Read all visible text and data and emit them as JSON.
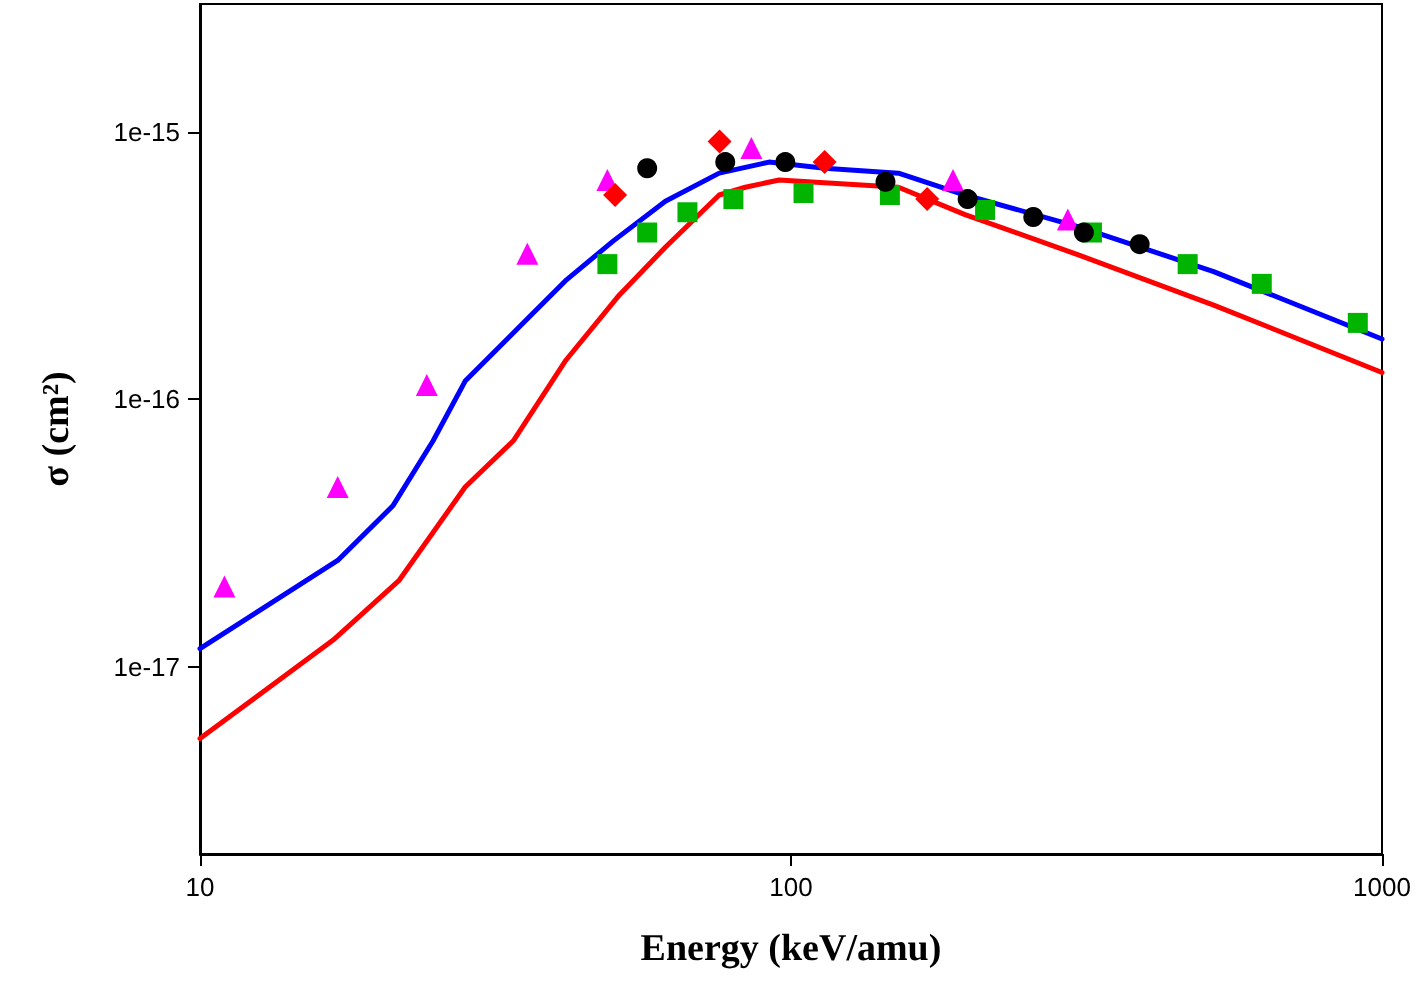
{
  "chart_data": {
    "type": "scatter",
    "xlabel": "Energy (keV/amu)",
    "ylabel": "σ (cm²)",
    "log": "xy",
    "grid": false,
    "xlim": [
      10,
      1000
    ],
    "xticks": [
      10,
      100,
      1000
    ],
    "ylim": [
      2e-18,
      3e-15
    ],
    "yticks": [
      1e-17,
      1e-16,
      1e-15
    ],
    "series": [
      {
        "type": "line",
        "color": "#0000ff",
        "marker": "none",
        "line_style": "solid",
        "x": [
          10,
          17.1,
          21.2,
          24.8,
          28.1,
          35.5,
          41.5,
          50,
          61.3,
          75.6,
          91.8,
          114,
          152,
          197,
          308,
          519,
          1000
        ],
        "values": [
          1.17e-17,
          2.5e-17,
          4e-17,
          7e-17,
          1.17e-16,
          1.96e-16,
          2.77e-16,
          3.9e-16,
          5.5e-16,
          7e-16,
          7.7e-16,
          7.3e-16,
          7e-16,
          5.8e-16,
          4.4e-16,
          3e-16,
          1.68e-16
        ]
      },
      {
        "type": "line",
        "color": "#ff0000",
        "marker": "none",
        "line_style": "solid",
        "x": [
          10,
          16.8,
          21.7,
          28.1,
          33.9,
          41.5,
          51.2,
          61.3,
          75.6,
          83.7,
          95.5,
          152,
          197,
          308,
          519,
          1000
        ],
        "values": [
          5.4e-18,
          1.26e-17,
          2.1e-17,
          4.7e-17,
          7e-17,
          1.39e-16,
          2.45e-16,
          3.7e-16,
          5.8e-16,
          6.2e-16,
          6.6e-16,
          6.2e-16,
          4.9e-16,
          3.45e-16,
          2.25e-16,
          1.26e-16
        ]
      },
      {
        "color": "#ff00ff",
        "marker": "triangle",
        "x": [
          11.0,
          17.1,
          24.2,
          35.8,
          48.9,
          85.7,
          188,
          294
        ],
        "values": [
          2e-17,
          4.7e-17,
          1.13e-16,
          3.5e-16,
          6.6e-16,
          8.7e-16,
          6.6e-16,
          4.7e-16
        ]
      },
      {
        "color": "#ff0000",
        "marker": "diamond",
        "x": [
          50.4,
          75.7,
          114,
          170
        ],
        "values": [
          5.8e-16,
          9.2e-16,
          7.7e-16,
          5.6e-16
        ]
      },
      {
        "color": "#00b400",
        "marker": "square",
        "x": [
          48.9,
          57.1,
          66.8,
          79.9,
          105,
          147,
          213,
          323,
          469,
          626,
          910
        ],
        "values": [
          3.2e-16,
          4.2e-16,
          5e-16,
          5.6e-16,
          5.9e-16,
          5.8e-16,
          5.1e-16,
          4.2e-16,
          3.2e-16,
          2.7e-16,
          1.93e-16
        ]
      },
      {
        "color": "#000000",
        "marker": "circle",
        "x": [
          57.1,
          77.4,
          97.8,
          144.5,
          199,
          257,
          313,
          389
        ],
        "values": [
          7.3e-16,
          7.7e-16,
          7.7e-16,
          6.5e-16,
          5.6e-16,
          4.8e-16,
          4.2e-16,
          3.8e-16
        ]
      }
    ]
  }
}
